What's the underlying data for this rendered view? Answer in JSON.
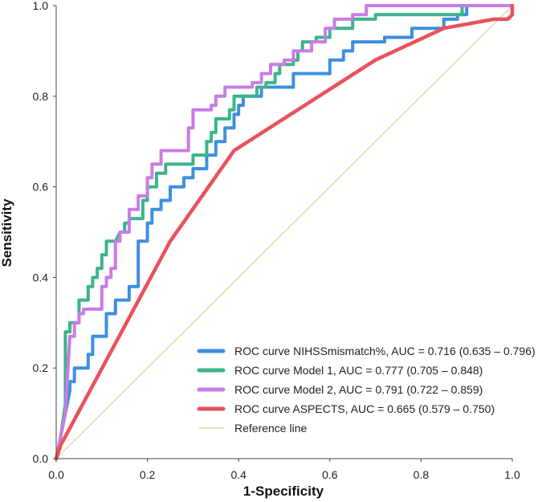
{
  "chart_data": {
    "type": "line",
    "title": "",
    "xlabel": "1-Specificity",
    "ylabel": "Sensitivity",
    "xlim": [
      0,
      1
    ],
    "ylim": [
      0,
      1
    ],
    "x_ticks": [
      "0.0",
      "0.2",
      "0.4",
      "0.6",
      "0.8",
      "1.0"
    ],
    "y_ticks": [
      "0.0",
      "0.2",
      "0.4",
      "0.6",
      "0.8",
      "1.0"
    ],
    "grid": false,
    "legend_position": "bottom-right",
    "series": [
      {
        "name": "ROC curve NIHSSmismatch%, AUC = 0.716 (0.635 – 0.796)",
        "color": "#3d8fe0",
        "stroke": 4,
        "points": [
          [
            0,
            0
          ],
          [
            0.02,
            0.1
          ],
          [
            0.03,
            0.15
          ],
          [
            0.03,
            0.17
          ],
          [
            0.04,
            0.17
          ],
          [
            0.04,
            0.2
          ],
          [
            0.07,
            0.2
          ],
          [
            0.07,
            0.23
          ],
          [
            0.08,
            0.23
          ],
          [
            0.08,
            0.27
          ],
          [
            0.11,
            0.27
          ],
          [
            0.11,
            0.32
          ],
          [
            0.13,
            0.32
          ],
          [
            0.13,
            0.35
          ],
          [
            0.16,
            0.35
          ],
          [
            0.16,
            0.38
          ],
          [
            0.18,
            0.38
          ],
          [
            0.18,
            0.48
          ],
          [
            0.2,
            0.48
          ],
          [
            0.2,
            0.5
          ],
          [
            0.2,
            0.52
          ],
          [
            0.21,
            0.52
          ],
          [
            0.21,
            0.55
          ],
          [
            0.23,
            0.55
          ],
          [
            0.23,
            0.57
          ],
          [
            0.25,
            0.57
          ],
          [
            0.25,
            0.6
          ],
          [
            0.28,
            0.6
          ],
          [
            0.28,
            0.62
          ],
          [
            0.3,
            0.62
          ],
          [
            0.3,
            0.64
          ],
          [
            0.33,
            0.64
          ],
          [
            0.33,
            0.67
          ],
          [
            0.35,
            0.67
          ],
          [
            0.35,
            0.7
          ],
          [
            0.37,
            0.7
          ],
          [
            0.37,
            0.73
          ],
          [
            0.39,
            0.73
          ],
          [
            0.39,
            0.76
          ],
          [
            0.4,
            0.76
          ],
          [
            0.4,
            0.78
          ],
          [
            0.41,
            0.78
          ],
          [
            0.41,
            0.8
          ],
          [
            0.45,
            0.8
          ],
          [
            0.45,
            0.82
          ],
          [
            0.52,
            0.82
          ],
          [
            0.52,
            0.85
          ],
          [
            0.6,
            0.85
          ],
          [
            0.6,
            0.88
          ],
          [
            0.63,
            0.88
          ],
          [
            0.63,
            0.9
          ],
          [
            0.65,
            0.9
          ],
          [
            0.65,
            0.92
          ],
          [
            0.72,
            0.92
          ],
          [
            0.72,
            0.93
          ],
          [
            0.78,
            0.93
          ],
          [
            0.78,
            0.95
          ],
          [
            0.85,
            0.95
          ],
          [
            0.85,
            0.97
          ],
          [
            0.88,
            0.97
          ],
          [
            0.88,
            0.98
          ],
          [
            0.9,
            0.98
          ],
          [
            0.9,
            1.0
          ],
          [
            1.0,
            1.0
          ]
        ]
      },
      {
        "name": "ROC curve Model 1, AUC = 0.777 (0.705 – 0.848)",
        "color": "#3cb38c",
        "stroke": 4,
        "points": [
          [
            0,
            0
          ],
          [
            0.01,
            0.05
          ],
          [
            0.02,
            0.12
          ],
          [
            0.02,
            0.28
          ],
          [
            0.03,
            0.28
          ],
          [
            0.03,
            0.3
          ],
          [
            0.05,
            0.3
          ],
          [
            0.05,
            0.35
          ],
          [
            0.07,
            0.35
          ],
          [
            0.07,
            0.38
          ],
          [
            0.08,
            0.38
          ],
          [
            0.08,
            0.4
          ],
          [
            0.09,
            0.4
          ],
          [
            0.09,
            0.42
          ],
          [
            0.1,
            0.42
          ],
          [
            0.1,
            0.45
          ],
          [
            0.11,
            0.45
          ],
          [
            0.11,
            0.48
          ],
          [
            0.13,
            0.48
          ],
          [
            0.14,
            0.5
          ],
          [
            0.15,
            0.5
          ],
          [
            0.15,
            0.52
          ],
          [
            0.16,
            0.52
          ],
          [
            0.16,
            0.53
          ],
          [
            0.19,
            0.53
          ],
          [
            0.19,
            0.57
          ],
          [
            0.2,
            0.57
          ],
          [
            0.2,
            0.6
          ],
          [
            0.22,
            0.6
          ],
          [
            0.22,
            0.63
          ],
          [
            0.24,
            0.63
          ],
          [
            0.24,
            0.65
          ],
          [
            0.3,
            0.65
          ],
          [
            0.3,
            0.67
          ],
          [
            0.33,
            0.67
          ],
          [
            0.33,
            0.7
          ],
          [
            0.34,
            0.7
          ],
          [
            0.34,
            0.72
          ],
          [
            0.35,
            0.72
          ],
          [
            0.35,
            0.75
          ],
          [
            0.38,
            0.75
          ],
          [
            0.38,
            0.77
          ],
          [
            0.39,
            0.77
          ],
          [
            0.39,
            0.8
          ],
          [
            0.44,
            0.8
          ],
          [
            0.44,
            0.82
          ],
          [
            0.46,
            0.82
          ],
          [
            0.46,
            0.83
          ],
          [
            0.48,
            0.83
          ],
          [
            0.48,
            0.85
          ],
          [
            0.49,
            0.85
          ],
          [
            0.49,
            0.87
          ],
          [
            0.52,
            0.87
          ],
          [
            0.52,
            0.88
          ],
          [
            0.53,
            0.88
          ],
          [
            0.53,
            0.9
          ],
          [
            0.54,
            0.9
          ],
          [
            0.54,
            0.92
          ],
          [
            0.57,
            0.92
          ],
          [
            0.57,
            0.93
          ],
          [
            0.6,
            0.93
          ],
          [
            0.6,
            0.95
          ],
          [
            0.65,
            0.95
          ],
          [
            0.65,
            0.97
          ],
          [
            0.7,
            0.97
          ],
          [
            0.7,
            0.98
          ],
          [
            0.89,
            0.98
          ],
          [
            0.89,
            1.0
          ],
          [
            1.0,
            1.0
          ]
        ]
      },
      {
        "name": "ROC curve Model 2, AUC = 0.791 (0.722 – 0.859)",
        "color": "#c97ce6",
        "stroke": 4,
        "points": [
          [
            0,
            0
          ],
          [
            0.01,
            0.05
          ],
          [
            0.02,
            0.1
          ],
          [
            0.03,
            0.27
          ],
          [
            0.04,
            0.27
          ],
          [
            0.04,
            0.3
          ],
          [
            0.05,
            0.3
          ],
          [
            0.05,
            0.32
          ],
          [
            0.06,
            0.32
          ],
          [
            0.06,
            0.33
          ],
          [
            0.1,
            0.33
          ],
          [
            0.1,
            0.38
          ],
          [
            0.11,
            0.38
          ],
          [
            0.11,
            0.4
          ],
          [
            0.12,
            0.4
          ],
          [
            0.12,
            0.42
          ],
          [
            0.13,
            0.42
          ],
          [
            0.13,
            0.48
          ],
          [
            0.14,
            0.48
          ],
          [
            0.14,
            0.5
          ],
          [
            0.16,
            0.5
          ],
          [
            0.16,
            0.55
          ],
          [
            0.18,
            0.55
          ],
          [
            0.18,
            0.58
          ],
          [
            0.2,
            0.58
          ],
          [
            0.2,
            0.62
          ],
          [
            0.21,
            0.62
          ],
          [
            0.21,
            0.65
          ],
          [
            0.23,
            0.65
          ],
          [
            0.23,
            0.68
          ],
          [
            0.29,
            0.68
          ],
          [
            0.29,
            0.73
          ],
          [
            0.3,
            0.73
          ],
          [
            0.3,
            0.77
          ],
          [
            0.34,
            0.77
          ],
          [
            0.34,
            0.78
          ],
          [
            0.35,
            0.78
          ],
          [
            0.35,
            0.8
          ],
          [
            0.37,
            0.8
          ],
          [
            0.37,
            0.82
          ],
          [
            0.43,
            0.82
          ],
          [
            0.43,
            0.83
          ],
          [
            0.45,
            0.83
          ],
          [
            0.45,
            0.85
          ],
          [
            0.47,
            0.85
          ],
          [
            0.47,
            0.87
          ],
          [
            0.5,
            0.87
          ],
          [
            0.5,
            0.88
          ],
          [
            0.52,
            0.88
          ],
          [
            0.52,
            0.9
          ],
          [
            0.56,
            0.9
          ],
          [
            0.56,
            0.92
          ],
          [
            0.59,
            0.92
          ],
          [
            0.59,
            0.95
          ],
          [
            0.61,
            0.95
          ],
          [
            0.61,
            0.97
          ],
          [
            0.65,
            0.97
          ],
          [
            0.65,
            0.98
          ],
          [
            0.68,
            0.98
          ],
          [
            0.68,
            1.0
          ],
          [
            1.0,
            1.0
          ]
        ]
      },
      {
        "name": "ROC curve ASPECTS, AUC = 0.665 (0.579 – 0.750)",
        "color": "#e8525a",
        "stroke": 4.5,
        "points": [
          [
            0,
            0
          ],
          [
            0.01,
            0.03
          ],
          [
            0.25,
            0.48
          ],
          [
            0.39,
            0.68
          ],
          [
            0.7,
            0.88
          ],
          [
            0.85,
            0.95
          ],
          [
            0.96,
            0.97
          ],
          [
            0.99,
            0.97
          ],
          [
            1.0,
            0.98
          ],
          [
            1.0,
            1.0
          ]
        ]
      },
      {
        "name": "Reference line",
        "color": "#dcdcaa",
        "stroke": 1.5,
        "points": [
          [
            0,
            0
          ],
          [
            1,
            1
          ]
        ]
      }
    ]
  }
}
